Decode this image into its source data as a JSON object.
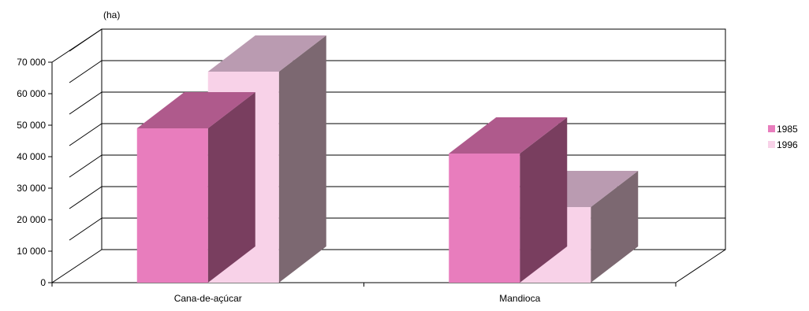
{
  "chart_data": {
    "type": "bar",
    "subtype": "3d-clustered-column",
    "title": "",
    "unit_label": "(ha)",
    "categories": [
      "Cana-de-açúcar",
      "Mandioca"
    ],
    "series": [
      {
        "name": "1985",
        "values": [
          49000,
          41000
        ],
        "color": "#E87DBD"
      },
      {
        "name": "1996",
        "values": [
          67000,
          24000
        ],
        "color": "#F8D2E8"
      }
    ],
    "y_ticks": [
      "0",
      "10 000",
      "20 000",
      "30 000",
      "40 000",
      "50 000",
      "60 000",
      "70 000"
    ],
    "ylim": [
      0,
      70000
    ],
    "grid": true,
    "legend_position": "right"
  }
}
